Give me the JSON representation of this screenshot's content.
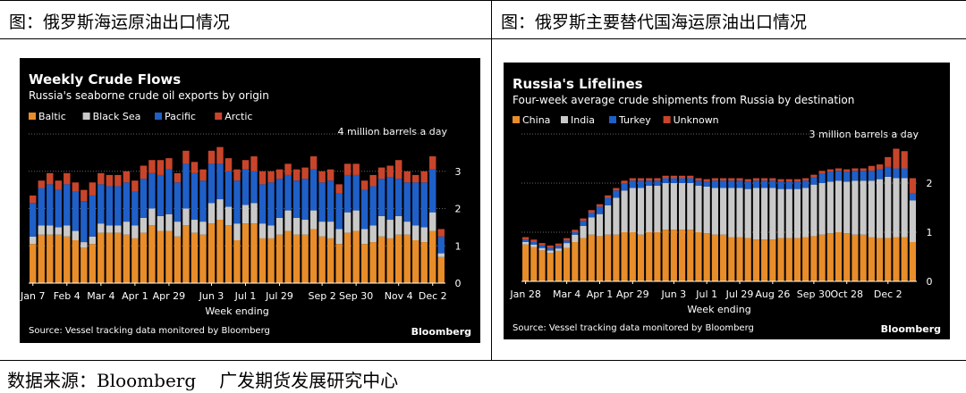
{
  "captions": {
    "left": "图：俄罗斯海运原油出口情况",
    "right": "图：俄罗斯主要替代国海运原油出口情况"
  },
  "footer": {
    "source_label": "数据来源：Bloomberg",
    "org": "广发期货发展研究中心"
  },
  "colors": {
    "Baltic": "#e88d2a",
    "Black Sea": "#c9c9c9",
    "Pacific": "#1f5fc8",
    "Arctic": "#c8452b",
    "China": "#e88d2a",
    "India": "#c9c9c9",
    "Turkey": "#1f5fc8",
    "Unknown": "#c8452b"
  },
  "chart_data": [
    {
      "type": "bar",
      "stacked": true,
      "title": "Weekly Crude Flows",
      "subtitle": "Russia's seaborne crude oil exports by origin",
      "unit_label": "4 million barrels a day",
      "xlabel": "Week ending",
      "source": "Source: Vessel tracking data monitored by Bloomberg",
      "brand": "Bloomberg",
      "ylim": [
        0,
        4
      ],
      "yticks": [
        0,
        1,
        2,
        3
      ],
      "x_tick_labels": [
        "Jan 7",
        "Feb 4",
        "Mar 4",
        "Apr 1",
        "Apr 29",
        "Jun 3",
        "Jul 1",
        "Jul 29",
        "Sep 2",
        "Sep 30",
        "Nov 4",
        "Dec 2"
      ],
      "x_tick_positions": [
        0,
        4,
        8,
        12,
        16,
        21,
        25,
        29,
        34,
        38,
        43,
        47
      ],
      "legend_position": "top-left",
      "series": [
        {
          "name": "Baltic",
          "values": [
            1.05,
            1.3,
            1.3,
            1.3,
            1.25,
            1.15,
            0.95,
            1.05,
            1.35,
            1.35,
            1.35,
            1.3,
            1.2,
            1.35,
            1.55,
            1.4,
            1.4,
            1.25,
            1.55,
            1.35,
            1.3,
            1.6,
            1.7,
            1.55,
            1.15,
            1.6,
            1.6,
            1.2,
            1.2,
            1.3,
            1.4,
            1.3,
            1.3,
            1.45,
            1.25,
            1.2,
            1.05,
            1.35,
            1.4,
            1.05,
            1.1,
            1.25,
            1.2,
            1.3,
            1.3,
            1.15,
            1.1,
            1.4,
            0.7
          ]
        },
        {
          "name": "Black Sea",
          "values": [
            0.2,
            0.25,
            0.25,
            0.2,
            0.3,
            0.25,
            0.15,
            0.2,
            0.25,
            0.2,
            0.2,
            0.35,
            0.35,
            0.4,
            0.45,
            0.4,
            0.45,
            0.4,
            0.45,
            0.35,
            0.35,
            0.55,
            0.55,
            0.5,
            0.45,
            0.5,
            0.55,
            0.4,
            0.35,
            0.45,
            0.55,
            0.45,
            0.4,
            0.5,
            0.4,
            0.45,
            0.4,
            0.55,
            0.55,
            0.4,
            0.45,
            0.55,
            0.5,
            0.5,
            0.35,
            0.4,
            0.4,
            0.5,
            0.1
          ]
        },
        {
          "name": "Pacific",
          "values": [
            0.9,
            1.0,
            1.1,
            1.0,
            1.1,
            1.05,
            1.1,
            1.1,
            1.05,
            1.05,
            1.05,
            1.05,
            0.9,
            1.05,
            0.95,
            1.1,
            1.2,
            1.05,
            1.2,
            1.25,
            1.1,
            1.05,
            0.95,
            0.95,
            1.15,
            0.95,
            0.85,
            1.05,
            1.15,
            1.05,
            0.95,
            1.0,
            1.1,
            1.1,
            1.05,
            1.1,
            0.95,
            1.0,
            0.95,
            1.05,
            1.05,
            1.0,
            1.15,
            1.0,
            1.05,
            1.15,
            1.2,
            1.15,
            0.45
          ]
        },
        {
          "name": "Arctic",
          "values": [
            0.2,
            0.2,
            0.3,
            0.25,
            0.3,
            0.25,
            0.3,
            0.35,
            0.3,
            0.3,
            0.3,
            0.3,
            0.3,
            0.35,
            0.35,
            0.4,
            0.3,
            0.25,
            0.35,
            0.3,
            0.3,
            0.35,
            0.45,
            0.35,
            0.3,
            0.25,
            0.4,
            0.35,
            0.3,
            0.25,
            0.3,
            0.3,
            0.3,
            0.35,
            0.3,
            0.3,
            0.25,
            0.3,
            0.3,
            0.25,
            0.3,
            0.3,
            0.3,
            0.5,
            0.3,
            0.2,
            0.3,
            0.35,
            0.2
          ]
        }
      ]
    },
    {
      "type": "bar",
      "stacked": true,
      "title": "Russia's Lifelines",
      "subtitle": "Four-week average crude shipments from Russia by destination",
      "unit_label": "3 million barrels a day",
      "xlabel": "Week ending",
      "source": "Source: Vessel tracking data monitored by Bloomberg",
      "brand": "Bloomberg",
      "ylim": [
        0,
        3
      ],
      "yticks": [
        0,
        1,
        2
      ],
      "x_tick_labels": [
        "Jan 28",
        "Mar 4",
        "Apr 1",
        "Apr 29",
        "Jun 3",
        "Jul 1",
        "Jul 29",
        "Aug 26",
        "Sep 30",
        "Oct 28",
        "Dec 2"
      ],
      "x_tick_positions": [
        0,
        5,
        9,
        13,
        18,
        22,
        26,
        30,
        35,
        39,
        44
      ],
      "legend_position": "top-left",
      "series": [
        {
          "name": "China",
          "values": [
            0.75,
            0.7,
            0.63,
            0.58,
            0.62,
            0.68,
            0.8,
            0.88,
            0.95,
            0.92,
            0.95,
            0.95,
            1.0,
            1.0,
            0.95,
            1.0,
            1.0,
            1.05,
            1.05,
            1.05,
            1.05,
            1.0,
            0.98,
            0.95,
            0.95,
            0.9,
            0.9,
            0.88,
            0.85,
            0.85,
            0.85,
            0.88,
            0.88,
            0.88,
            0.9,
            0.92,
            0.95,
            0.98,
            1.0,
            0.98,
            0.95,
            0.95,
            0.9,
            0.88,
            0.88,
            0.9,
            0.9,
            0.8
          ]
        },
        {
          "name": "India",
          "values": [
            0.05,
            0.05,
            0.05,
            0.05,
            0.05,
            0.1,
            0.15,
            0.25,
            0.35,
            0.45,
            0.6,
            0.75,
            0.85,
            0.9,
            0.95,
            0.95,
            0.95,
            0.95,
            0.95,
            0.95,
            0.95,
            0.95,
            0.95,
            0.95,
            0.95,
            1.0,
            1.0,
            1.0,
            1.05,
            1.05,
            1.05,
            1.0,
            1.0,
            1.0,
            1.0,
            1.05,
            1.05,
            1.05,
            1.05,
            1.05,
            1.1,
            1.1,
            1.15,
            1.2,
            1.25,
            1.2,
            1.2,
            0.85
          ]
        },
        {
          "name": "Turkey",
          "values": [
            0.05,
            0.05,
            0.05,
            0.05,
            0.05,
            0.05,
            0.05,
            0.1,
            0.1,
            0.15,
            0.15,
            0.15,
            0.15,
            0.15,
            0.15,
            0.1,
            0.1,
            0.1,
            0.1,
            0.1,
            0.1,
            0.1,
            0.1,
            0.15,
            0.15,
            0.15,
            0.15,
            0.15,
            0.15,
            0.15,
            0.15,
            0.15,
            0.15,
            0.15,
            0.15,
            0.15,
            0.2,
            0.2,
            0.2,
            0.2,
            0.2,
            0.2,
            0.2,
            0.2,
            0.2,
            0.2,
            0.2,
            0.15
          ]
        },
        {
          "name": "Unknown",
          "values": [
            0.05,
            0.05,
            0.05,
            0.05,
            0.05,
            0.05,
            0.05,
            0.05,
            0.05,
            0.05,
            0.05,
            0.05,
            0.05,
            0.05,
            0.05,
            0.05,
            0.05,
            0.05,
            0.05,
            0.05,
            0.05,
            0.05,
            0.05,
            0.05,
            0.05,
            0.05,
            0.05,
            0.05,
            0.05,
            0.05,
            0.05,
            0.05,
            0.05,
            0.05,
            0.05,
            0.05,
            0.05,
            0.05,
            0.05,
            0.05,
            0.05,
            0.05,
            0.1,
            0.1,
            0.2,
            0.4,
            0.35,
            0.3
          ]
        }
      ]
    }
  ]
}
